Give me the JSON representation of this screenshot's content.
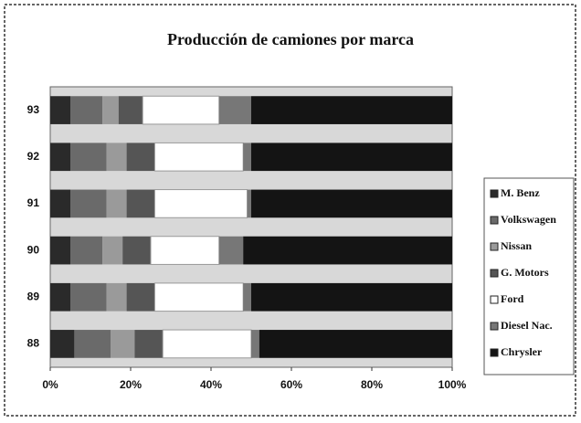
{
  "chart_data": {
    "type": "stacked-bar-horizontal",
    "title": "Producción de camiones por marca",
    "categories": [
      "88",
      "89",
      "90",
      "91",
      "92",
      "93"
    ],
    "series": [
      {
        "name": "M. Benz",
        "color": "#2a2a2a",
        "values": [
          6,
          5,
          5,
          5,
          5,
          5
        ]
      },
      {
        "name": "Volkswagen",
        "color": "#6a6a6a",
        "values": [
          9,
          9,
          8,
          9,
          9,
          8
        ]
      },
      {
        "name": "Nissan",
        "color": "#9a9a9a",
        "values": [
          6,
          5,
          5,
          5,
          5,
          4
        ]
      },
      {
        "name": "G. Motors",
        "color": "#555555",
        "values": [
          7,
          7,
          7,
          7,
          7,
          6
        ]
      },
      {
        "name": "Ford",
        "color": "#ffffff",
        "values": [
          22,
          22,
          17,
          23,
          22,
          19
        ]
      },
      {
        "name": "Diesel Nac.",
        "color": "#777777",
        "values": [
          2,
          2,
          6,
          1,
          2,
          8
        ]
      },
      {
        "name": "Chrysler",
        "color": "#141414",
        "values": [
          48,
          50,
          52,
          50,
          50,
          50
        ]
      }
    ],
    "xlim": [
      0,
      100
    ],
    "xticks": [
      {
        "value": 0,
        "label": "0%"
      },
      {
        "value": 20,
        "label": "20%"
      },
      {
        "value": 40,
        "label": "40%"
      },
      {
        "value": 60,
        "label": "60%"
      },
      {
        "value": 80,
        "label": "80%"
      },
      {
        "value": 100,
        "label": "100%"
      }
    ],
    "legend": "right"
  }
}
